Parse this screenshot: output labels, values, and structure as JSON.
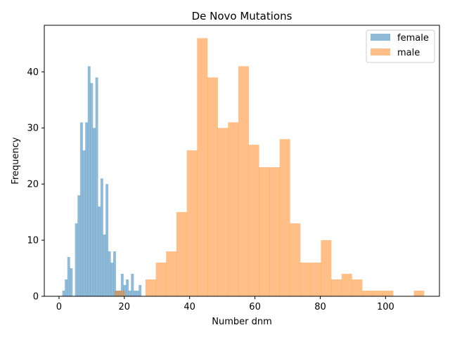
{
  "chart_data": {
    "type": "histogram",
    "title": "De Novo Mutations",
    "xlabel": "Number dnm",
    "ylabel": "Frequency",
    "xlim": [
      -4.5,
      116.5
    ],
    "ylim": [
      0,
      48.3
    ],
    "xticks": [
      0,
      20,
      40,
      60,
      80,
      100
    ],
    "yticks": [
      0,
      10,
      20,
      30,
      40
    ],
    "legend_position": "top-right",
    "grid": false,
    "series": [
      {
        "name": "female",
        "color": "#1f77b4",
        "opacity": 0.5,
        "bin_start": 1,
        "bin_width": 0.78,
        "counts": [
          1,
          3,
          7,
          5,
          0,
          13,
          18,
          31,
          26,
          31,
          41,
          38,
          30,
          39,
          16,
          21,
          11,
          20,
          8,
          6,
          8,
          1,
          1,
          4,
          2,
          3,
          1,
          4,
          1,
          1,
          2
        ]
      },
      {
        "name": "male",
        "color": "#ff7f0e",
        "opacity": 0.5,
        "bin_start": 17,
        "bin_width": 3.16,
        "counts": [
          1,
          0,
          0,
          3,
          6,
          8,
          15,
          26,
          46,
          39,
          30,
          31,
          41,
          27,
          23,
          23,
          28,
          13,
          6,
          6,
          10,
          3,
          4,
          3,
          1,
          1,
          1,
          0,
          0,
          1
        ]
      }
    ]
  }
}
